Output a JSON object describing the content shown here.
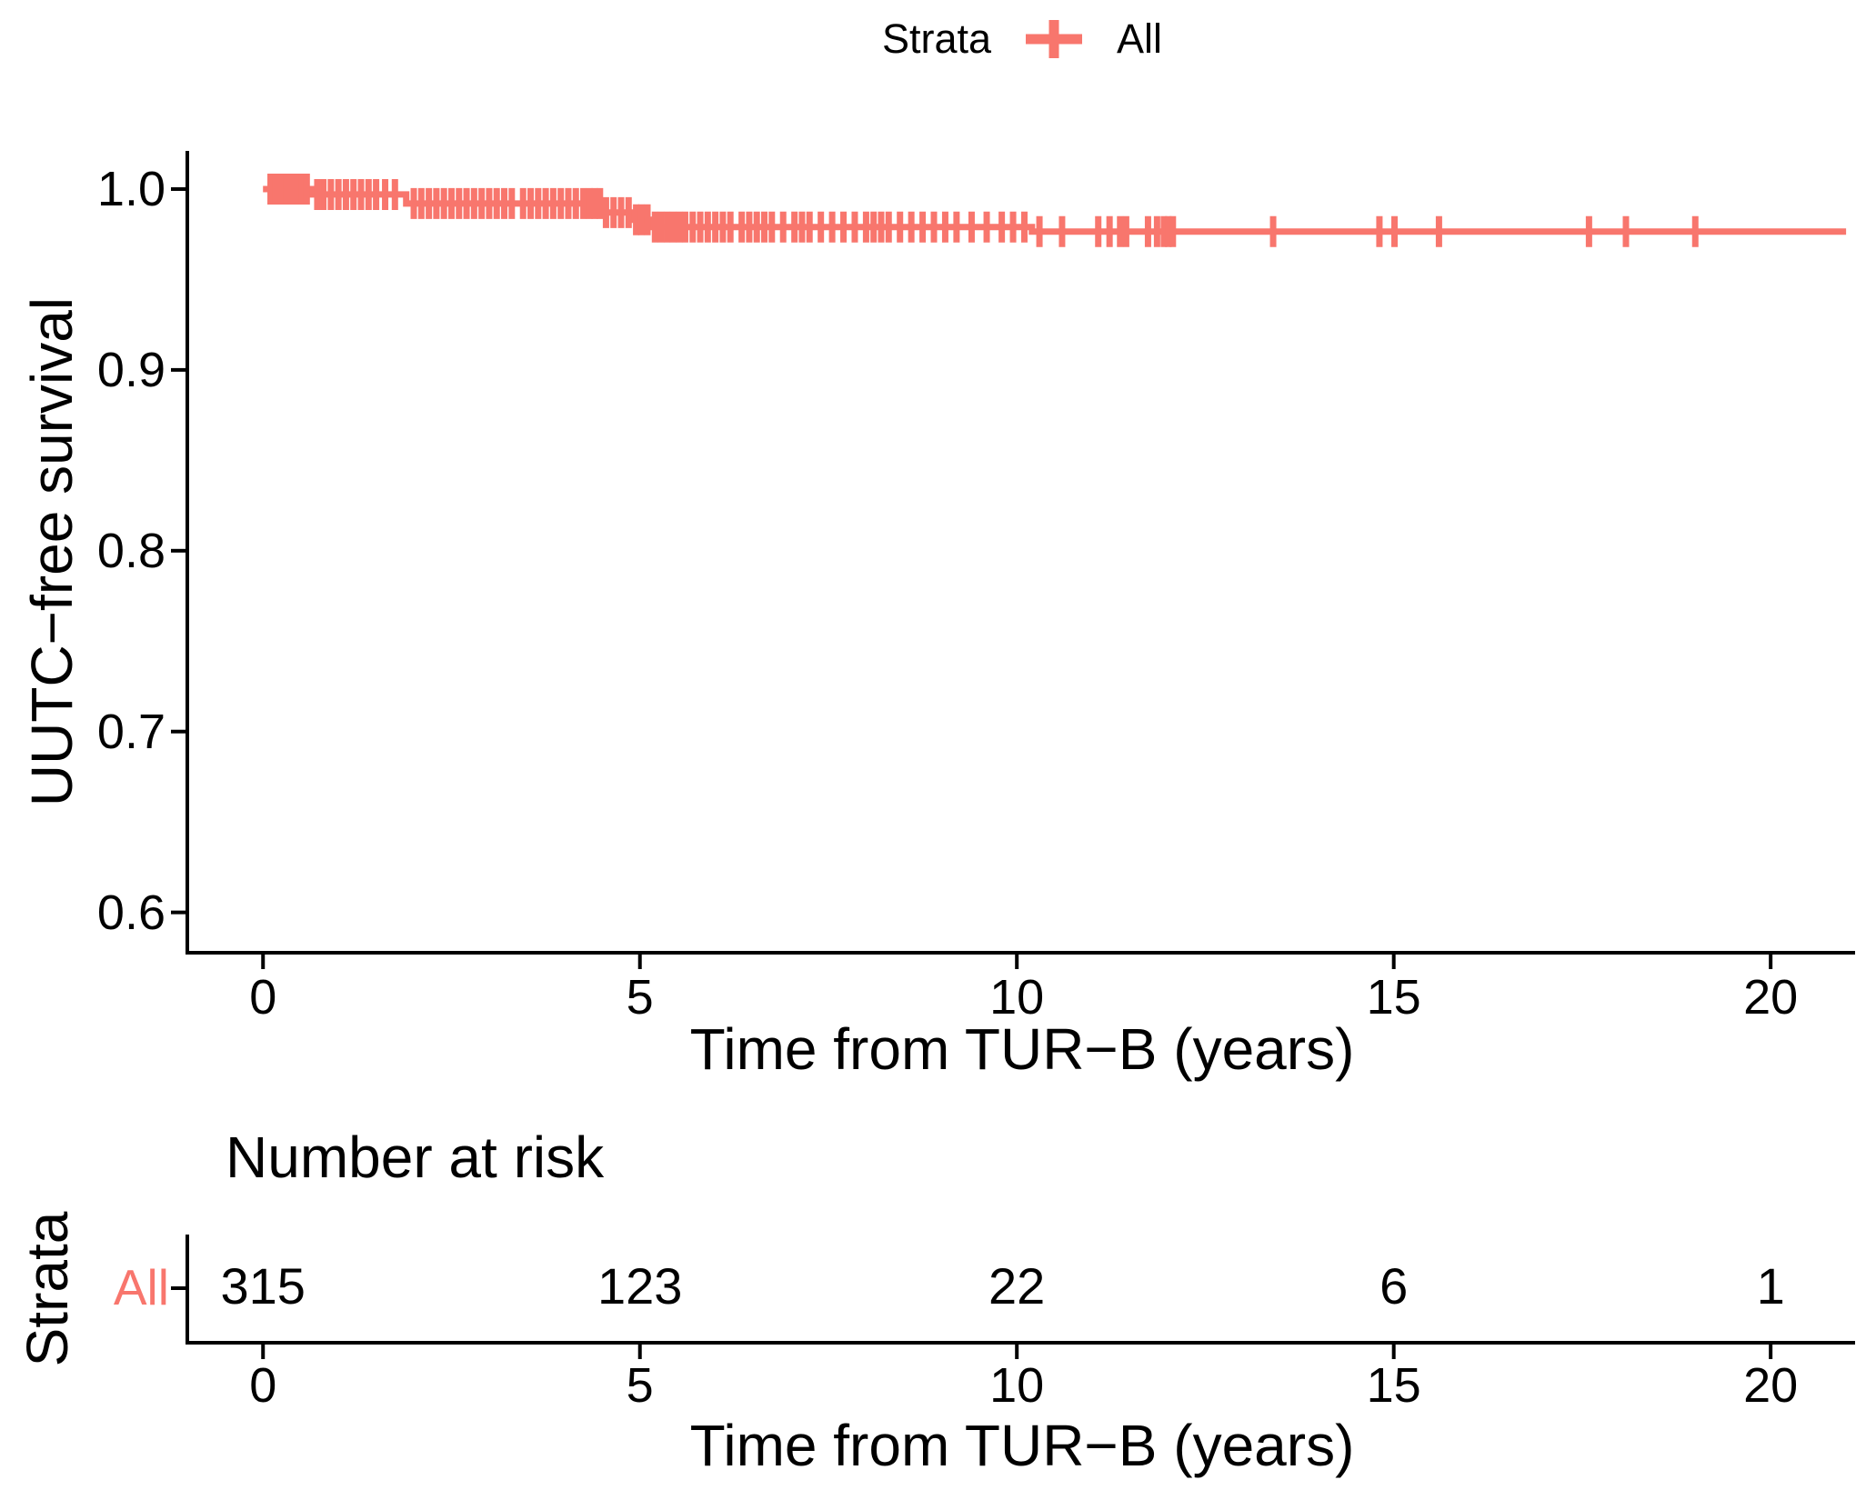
{
  "figure": {
    "background": "#ffffff",
    "legend": {
      "title": "Strata",
      "items": [
        {
          "label": "All",
          "color": "#F8766D"
        }
      ]
    },
    "main_plot": {
      "ylabel": "UUTC−free survival",
      "xlabel": "Time from TUR−B (years)",
      "yticks": [
        {
          "label": "1.0",
          "value": 1.0
        },
        {
          "label": "0.9",
          "value": 0.9
        },
        {
          "label": "0.8",
          "value": 0.8
        },
        {
          "label": "0.7",
          "value": 0.7
        },
        {
          "label": "0.6",
          "value": 0.6
        }
      ],
      "xticks": [
        {
          "label": "0",
          "value": 0
        },
        {
          "label": "5",
          "value": 5
        },
        {
          "label": "10",
          "value": 10
        },
        {
          "label": "15",
          "value": 15
        },
        {
          "label": "20",
          "value": 20
        }
      ]
    },
    "risk_table": {
      "title": "Number at risk",
      "axis_title": "Strata",
      "rows": [
        {
          "label": "All",
          "color": "#F8766D",
          "counts": [
            "315",
            "123",
            "22",
            "6",
            "1"
          ]
        }
      ],
      "xticks": [
        {
          "label": "0",
          "value": 0
        },
        {
          "label": "5",
          "value": 5
        },
        {
          "label": "10",
          "value": 10
        },
        {
          "label": "15",
          "value": 15
        },
        {
          "label": "20",
          "value": 20
        }
      ],
      "xlabel": "Time from TUR−B (years)"
    }
  },
  "chart_data": {
    "type": "line",
    "subtype": "kaplan-meier-step",
    "title": "",
    "xlabel": "Time from TUR−B (years)",
    "ylabel": "UUTC−free survival",
    "x_range": [
      -0.98,
      21.12
    ],
    "y_range": [
      0.5787,
      1.0201
    ],
    "x_ticks": [
      0,
      5,
      10,
      15,
      20
    ],
    "y_ticks": [
      1.0,
      0.9,
      0.8,
      0.7,
      0.6
    ],
    "grid": false,
    "legend_position": "top",
    "series": [
      {
        "name": "All",
        "color": "#F8766D",
        "end_time": 21.0,
        "steps": [
          {
            "t": 0.0,
            "s": 1.0
          },
          {
            "t": 0.65,
            "s": 0.997
          },
          {
            "t": 1.9,
            "s": 0.992
          },
          {
            "t": 4.5,
            "s": 0.987
          },
          {
            "t": 4.9,
            "s": 0.983
          },
          {
            "t": 5.15,
            "s": 0.979
          },
          {
            "t": 10.2,
            "s": 0.9765
          }
        ],
        "censor_times": [
          0.1,
          0.17,
          0.24,
          0.31,
          0.38,
          0.45,
          0.52,
          0.58,
          0.72,
          0.8,
          0.9,
          1.0,
          1.1,
          1.2,
          1.3,
          1.4,
          1.5,
          1.62,
          1.75,
          2.0,
          2.1,
          2.2,
          2.3,
          2.4,
          2.5,
          2.6,
          2.7,
          2.8,
          2.9,
          3.0,
          3.1,
          3.2,
          3.3,
          3.45,
          3.55,
          3.65,
          3.75,
          3.85,
          3.95,
          4.05,
          4.15,
          4.25,
          4.33,
          4.4,
          4.47,
          4.55,
          4.65,
          4.75,
          4.85,
          4.95,
          5.02,
          5.1,
          5.2,
          5.28,
          5.36,
          5.44,
          5.52,
          5.6,
          5.7,
          5.8,
          5.9,
          6.0,
          6.1,
          6.2,
          6.35,
          6.45,
          6.55,
          6.65,
          6.75,
          6.9,
          7.05,
          7.15,
          7.25,
          7.4,
          7.55,
          7.7,
          7.85,
          8.0,
          8.1,
          8.2,
          8.3,
          8.45,
          8.6,
          8.75,
          8.9,
          9.05,
          9.2,
          9.4,
          9.6,
          9.8,
          9.95,
          10.1,
          10.3,
          10.6,
          11.08,
          11.23,
          11.37,
          11.45,
          11.74,
          11.86,
          11.95,
          12.01,
          12.07,
          13.4,
          14.81,
          15.01,
          15.6,
          17.59,
          18.08,
          19.0
        ]
      }
    ],
    "number_at_risk": {
      "times": [
        0,
        5,
        10,
        15,
        20
      ],
      "series": [
        {
          "name": "All",
          "counts": [
            315,
            123,
            22,
            6,
            1
          ]
        }
      ]
    }
  }
}
